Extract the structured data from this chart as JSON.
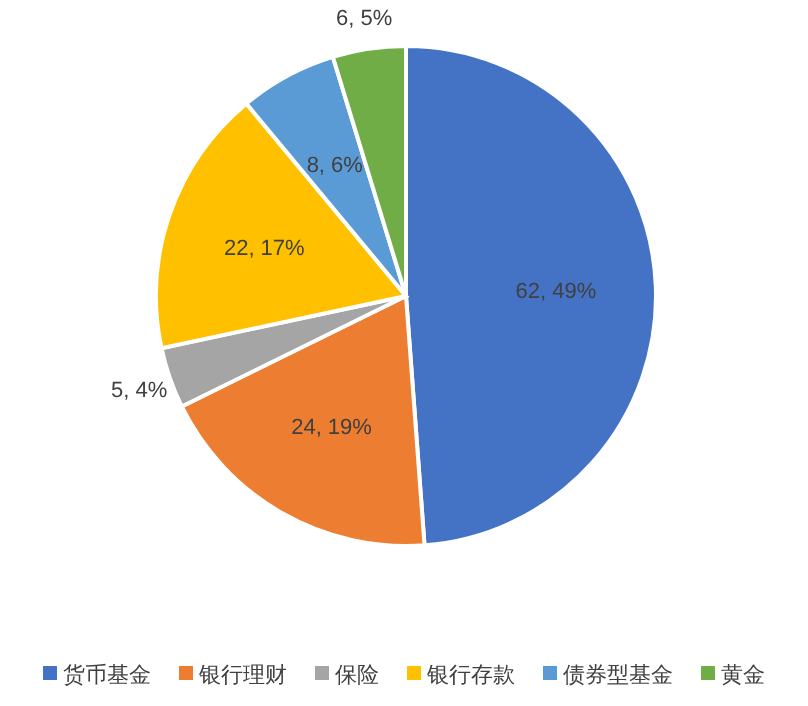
{
  "chart_data": {
    "type": "pie",
    "categories": [
      "货币基金",
      "银行理财",
      "保险",
      "银行存款",
      "债券型基金",
      "黄金"
    ],
    "values": [
      62,
      24,
      5,
      22,
      8,
      6
    ],
    "colors": [
      "#4472c4",
      "#ed7d31",
      "#a5a5a5",
      "#ffc000",
      "#5b9bd5",
      "#70ad47"
    ],
    "value_labels": [
      "62,  49%",
      "24, 19%",
      "5, 4%",
      "22, 17%",
      "8, 6%",
      "6, 5%"
    ],
    "legend": "bottom"
  }
}
